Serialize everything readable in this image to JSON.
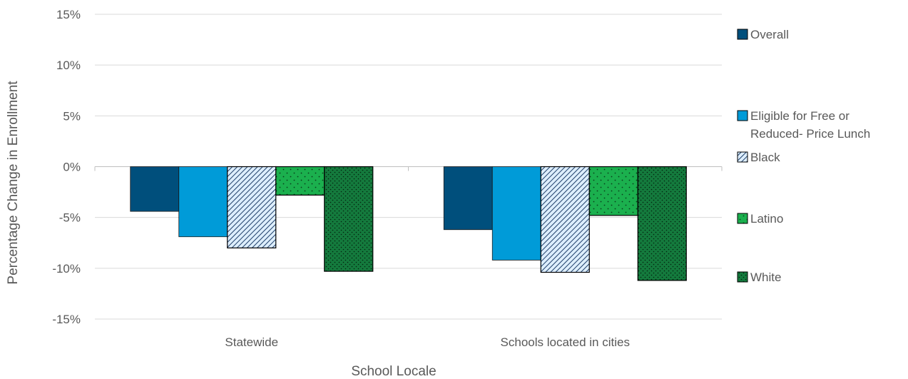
{
  "chart_data": {
    "type": "bar",
    "title": "",
    "xlabel": "School Locale",
    "ylabel": "Percentage Change in Enrollment",
    "ylim": [
      -15,
      15
    ],
    "yticks": [
      15,
      10,
      5,
      0,
      -5,
      -10,
      -15
    ],
    "ytick_labels": [
      "15%",
      "10%",
      "5%",
      "0%",
      "-5%",
      "-10%",
      "-15%"
    ],
    "categories": [
      "Statewide",
      "Schools located in cities"
    ],
    "grid": "horizontal",
    "legend_position": "right",
    "series": [
      {
        "name": "Overall",
        "values": [
          -4.4,
          -6.2
        ],
        "color": "#004f7c",
        "pattern": "solid"
      },
      {
        "name": "Eligible for Free or Reduced- Price Lunch",
        "values": [
          -6.9,
          -9.2
        ],
        "color": "#009bd8",
        "pattern": "solid"
      },
      {
        "name": "Black",
        "values": [
          -8.0,
          -10.4
        ],
        "color": "#ddeeff",
        "pattern": "diagonal-stripes"
      },
      {
        "name": "Latino",
        "values": [
          -2.8,
          -4.8
        ],
        "color": "#1bb04e",
        "pattern": "sparse-dots"
      },
      {
        "name": "White",
        "values": [
          -10.3,
          -11.2
        ],
        "color": "#147a3d",
        "pattern": "dense-dots"
      }
    ]
  }
}
